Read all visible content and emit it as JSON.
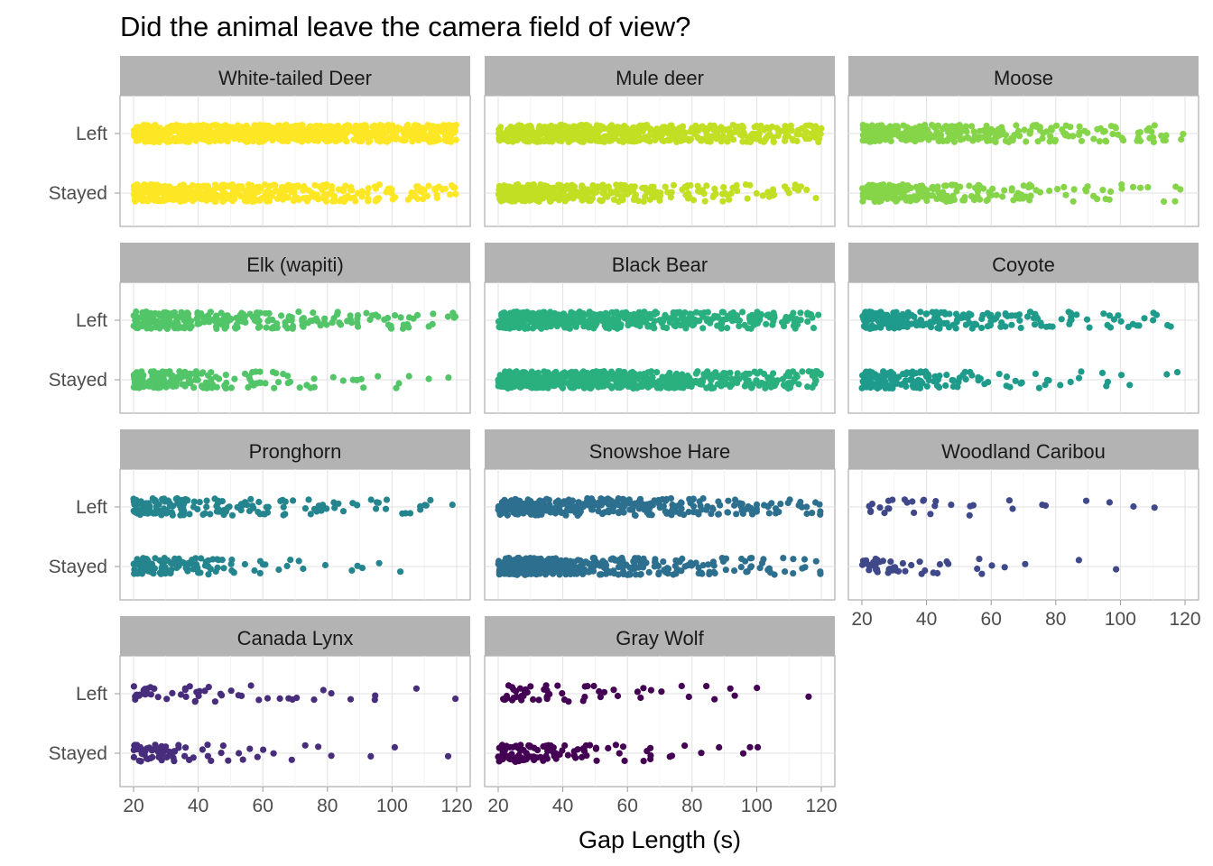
{
  "chart_data": {
    "type": "scatter",
    "jitter": true,
    "title": "Did the animal leave the camera field of view?",
    "xlabel": "Gap Length (s)",
    "ylabel": "",
    "xlim": [
      20,
      120
    ],
    "x_ticks": [
      20,
      40,
      60,
      80,
      100,
      120
    ],
    "y_categories": [
      "Left",
      "Stayed"
    ],
    "grid": true,
    "legend": "none",
    "facets": [
      {
        "name": "White-tailed Deer",
        "color": "#FDE725",
        "density": {
          "Left": [
            95,
            92,
            88,
            85,
            82,
            78,
            75,
            72,
            70,
            68
          ],
          "Stayed": [
            100,
            85,
            65,
            50,
            38,
            30,
            25,
            20,
            18,
            16
          ]
        }
      },
      {
        "name": "Mule deer",
        "color": "#C2DF23",
        "density": {
          "Left": [
            90,
            80,
            70,
            62,
            55,
            48,
            42,
            38,
            34,
            30
          ],
          "Stayed": [
            95,
            75,
            55,
            40,
            28,
            20,
            15,
            11,
            9,
            7
          ]
        }
      },
      {
        "name": "Moose",
        "color": "#86D549",
        "density": {
          "Left": [
            70,
            55,
            42,
            32,
            25,
            20,
            16,
            13,
            11,
            9
          ],
          "Stayed": [
            72,
            50,
            33,
            22,
            15,
            11,
            8,
            6,
            5,
            4
          ]
        }
      },
      {
        "name": "Elk (wapiti)",
        "color": "#52C569",
        "density": {
          "Left": [
            70,
            52,
            38,
            28,
            22,
            17,
            14,
            11,
            9,
            7
          ],
          "Stayed": [
            70,
            42,
            24,
            14,
            9,
            6,
            4,
            3,
            3,
            2
          ]
        }
      },
      {
        "name": "Black Bear",
        "color": "#2AB07F",
        "density": {
          "Left": [
            95,
            80,
            66,
            55,
            46,
            38,
            32,
            27,
            23,
            20
          ],
          "Stayed": [
            100,
            90,
            78,
            66,
            55,
            46,
            38,
            32,
            27,
            23
          ]
        }
      },
      {
        "name": "Coyote",
        "color": "#1E9B8A",
        "density": {
          "Left": [
            65,
            45,
            32,
            22,
            16,
            12,
            9,
            7,
            6,
            5
          ],
          "Stayed": [
            70,
            38,
            20,
            11,
            7,
            5,
            4,
            3,
            2,
            2
          ]
        }
      },
      {
        "name": "Pronghorn",
        "color": "#25858E",
        "density": {
          "Left": [
            48,
            32,
            22,
            16,
            12,
            9,
            7,
            6,
            5,
            4
          ],
          "Stayed": [
            60,
            32,
            16,
            9,
            5,
            3,
            2,
            2,
            1,
            0
          ]
        }
      },
      {
        "name": "Snowshoe Hare",
        "color": "#2D6F8E",
        "density": {
          "Left": [
            75,
            58,
            45,
            36,
            29,
            23,
            19,
            16,
            13,
            11
          ],
          "Stayed": [
            98,
            72,
            52,
            38,
            28,
            21,
            16,
            12,
            10,
            8
          ]
        }
      },
      {
        "name": "Woodland Caribou",
        "color": "#3F4889",
        "density": {
          "Left": [
            10,
            6,
            4,
            3,
            2,
            2,
            1,
            1,
            1,
            1
          ],
          "Stayed": [
            22,
            9,
            5,
            3,
            2,
            1,
            1,
            1,
            0,
            0
          ]
        }
      },
      {
        "name": "Canada Lynx",
        "color": "#472D7B",
        "density": {
          "Left": [
            16,
            10,
            7,
            5,
            4,
            3,
            2,
            2,
            1,
            1
          ],
          "Stayed": [
            34,
            14,
            7,
            4,
            3,
            2,
            1,
            1,
            1,
            1
          ]
        }
      },
      {
        "name": "Gray Wolf",
        "color": "#440154",
        "density": {
          "Left": [
            22,
            12,
            7,
            5,
            4,
            3,
            2,
            2,
            1,
            1
          ],
          "Stayed": [
            45,
            24,
            13,
            8,
            5,
            3,
            2,
            2,
            1,
            0
          ]
        }
      }
    ]
  }
}
